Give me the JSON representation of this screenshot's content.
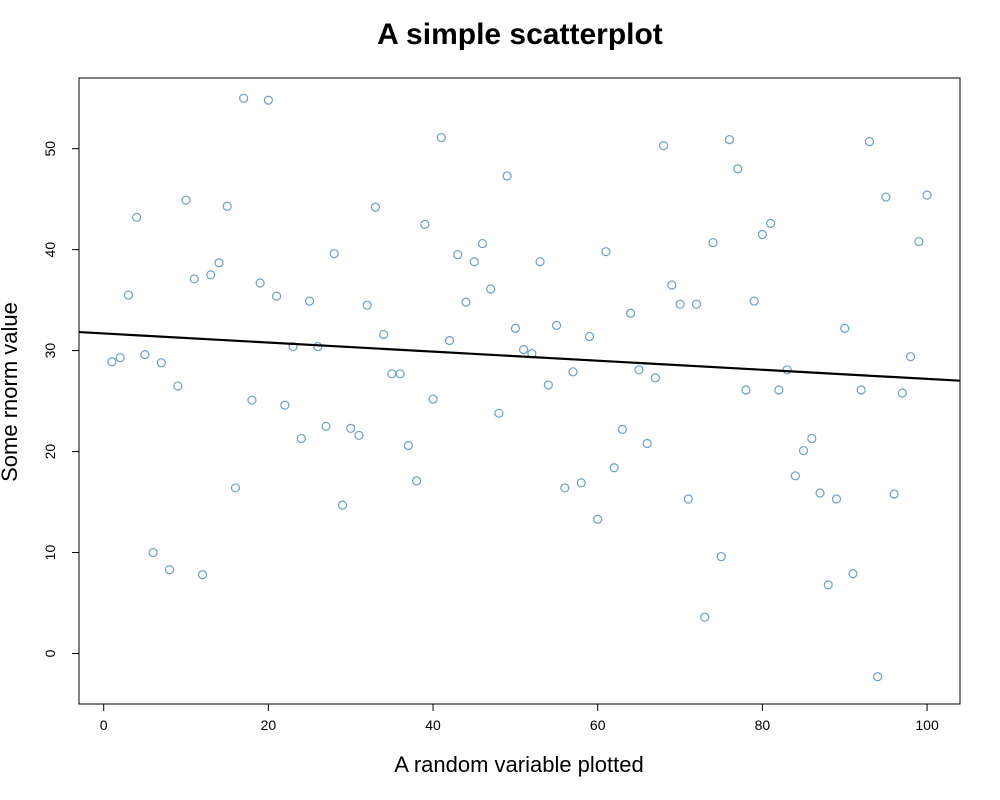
{
  "chart_data": {
    "type": "scatter",
    "title": "A simple scatterplot",
    "xlabel": "A random variable plotted",
    "ylabel": "Some rnorm value",
    "xlim": [
      -3,
      104
    ],
    "ylim": [
      -5,
      57
    ],
    "x_ticks": [
      0,
      20,
      40,
      60,
      80,
      100
    ],
    "y_ticks": [
      0,
      10,
      20,
      30,
      40,
      50
    ],
    "grid": false,
    "legend": "none",
    "point_color": "#6a9fd0",
    "line_color": "#000000",
    "series": [
      {
        "x": [
          1,
          2,
          3,
          4,
          5,
          6,
          7,
          8,
          9,
          10,
          11,
          12,
          13,
          14,
          15,
          16,
          17,
          18,
          19,
          20,
          21,
          22,
          23,
          24,
          25,
          26,
          27,
          28,
          29,
          30,
          31,
          32,
          33,
          34,
          35,
          36,
          37,
          38,
          39,
          40,
          41,
          42,
          43,
          44,
          45,
          46,
          47,
          48,
          49,
          50,
          51,
          52,
          53,
          54,
          55,
          56,
          57,
          58,
          59,
          60,
          61,
          62,
          63,
          64,
          65,
          66,
          67,
          68,
          69,
          70,
          71,
          72,
          73,
          74,
          75,
          76,
          77,
          78,
          79,
          80,
          81,
          82,
          83,
          84,
          85,
          86,
          87,
          88,
          89,
          90,
          91,
          92,
          93,
          94,
          95,
          96,
          97,
          98,
          99,
          100
        ],
        "y": [
          28.9,
          29.3,
          35.5,
          43.2,
          29.6,
          10.0,
          28.8,
          8.3,
          26.5,
          44.9,
          37.1,
          7.8,
          37.5,
          38.7,
          44.3,
          16.4,
          55.0,
          25.1,
          36.7,
          54.8,
          35.4,
          24.6,
          30.4,
          21.3,
          34.9,
          30.4,
          22.5,
          39.6,
          14.7,
          22.3,
          21.6,
          34.5,
          44.2,
          31.6,
          27.7,
          27.7,
          20.6,
          17.1,
          42.5,
          25.2,
          51.1,
          31.0,
          39.5,
          34.8,
          38.8,
          40.6,
          36.1,
          23.8,
          47.3,
          32.2,
          30.1,
          29.7,
          38.8,
          26.6,
          32.5,
          16.4,
          27.9,
          16.9,
          31.4,
          13.3,
          39.8,
          18.4,
          22.2,
          33.7,
          28.1,
          20.8,
          27.3,
          50.3,
          36.5,
          34.6,
          15.3,
          34.6,
          3.6,
          40.7,
          9.6,
          50.9,
          48.0,
          26.1,
          34.9,
          41.5,
          42.6,
          26.1,
          28.1,
          17.6,
          20.1,
          21.3,
          15.9,
          6.8,
          15.3,
          32.2,
          7.9,
          26.1,
          50.7,
          -2.3,
          45.2,
          15.8,
          25.8,
          29.4,
          40.8,
          45.4
        ]
      }
    ],
    "regression_line": {
      "intercept": 31.7,
      "slope": -0.045
    }
  }
}
